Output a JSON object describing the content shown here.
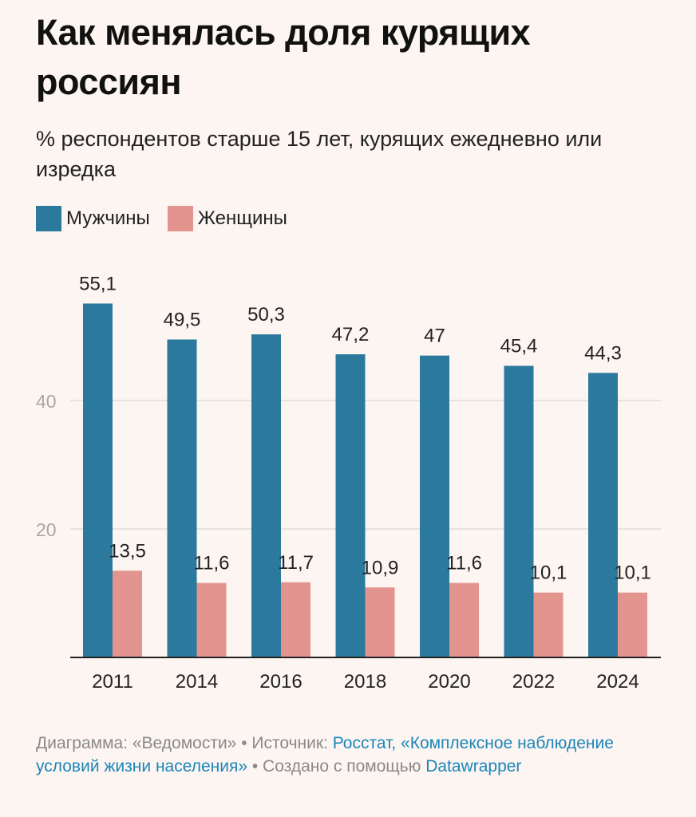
{
  "header": {
    "title": "Как менялась доля курящих россиян",
    "subtitle": "% респондентов старше 15 лет, курящих ежедневно или изредка"
  },
  "legend": [
    {
      "label": "Мужчины",
      "color": "#2b7a9e"
    },
    {
      "label": "Женщины",
      "color": "#e4948e"
    }
  ],
  "chart_data": {
    "type": "bar",
    "title": "Как менялась доля курящих россиян",
    "subtitle": "% респондентов старше 15 лет, курящих ежедневно или изредка",
    "xlabel": "",
    "ylabel": "",
    "categories": [
      "2011",
      "2014",
      "2016",
      "2018",
      "2020",
      "2022",
      "2024"
    ],
    "series": [
      {
        "name": "Мужчины",
        "color": "#2b7a9e",
        "values": [
          55.1,
          49.5,
          50.3,
          47.2,
          47,
          45.4,
          44.3
        ],
        "labels": [
          "55,1",
          "49,5",
          "50,3",
          "47,2",
          "47",
          "45,4",
          "44,3"
        ]
      },
      {
        "name": "Женщины",
        "color": "#e4948e",
        "values": [
          13.5,
          11.6,
          11.7,
          10.9,
          11.6,
          10.1,
          10.1
        ],
        "labels": [
          "13,5",
          "11,6",
          "11,7",
          "10,9",
          "11,6",
          "10,1",
          "10,1"
        ]
      }
    ],
    "yticks": [
      20,
      40
    ],
    "ylim": [
      0,
      60
    ],
    "grid": true,
    "legend_position": "top-left"
  },
  "footer": {
    "prefix": "Диаграмма: «Ведомости» • Источник: ",
    "source_link": "Росстат, «Комплексное наблюдение условий жизни населения»",
    "middle": " • Создано с помощью ",
    "tool_link": "Datawrapper"
  }
}
